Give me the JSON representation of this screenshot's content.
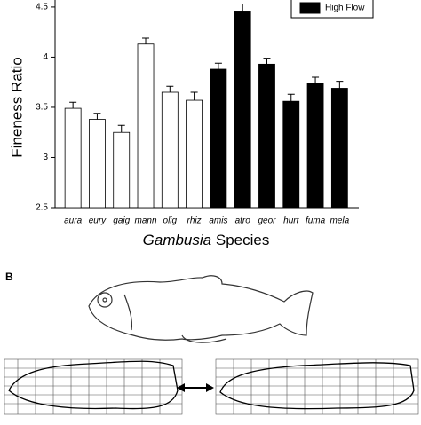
{
  "chart_data": {
    "type": "bar",
    "ylabel": "Fineness Ratio",
    "xlabel": [
      "Gambusia",
      "Species"
    ],
    "categories": [
      "aura",
      "eury",
      "gaig",
      "mann",
      "olig",
      "rhiz",
      "amis",
      "atro",
      "geor",
      "hurt",
      "fuma",
      "mela"
    ],
    "series": [
      {
        "color": "#ffffff",
        "values": [
          3.49,
          3.38,
          3.25,
          4.13,
          3.65,
          3.57,
          null,
          null,
          null,
          null,
          null,
          null
        ],
        "errors": [
          0.06,
          0.06,
          0.07,
          0.06,
          0.06,
          0.08,
          null,
          null,
          null,
          null,
          null,
          null
        ]
      },
      {
        "name": "High Flow",
        "color": "#000000",
        "values": [
          null,
          null,
          null,
          null,
          null,
          null,
          3.88,
          4.46,
          3.93,
          3.56,
          3.74,
          3.69
        ],
        "errors": [
          null,
          null,
          null,
          null,
          null,
          null,
          0.06,
          0.07,
          0.06,
          0.07,
          0.06,
          0.07
        ]
      }
    ],
    "ylim": [
      2.5,
      4.57
    ],
    "yticks": [
      2.5,
      3.0,
      3.5,
      4.0,
      4.5
    ]
  },
  "panel_b": {
    "label": "B"
  }
}
